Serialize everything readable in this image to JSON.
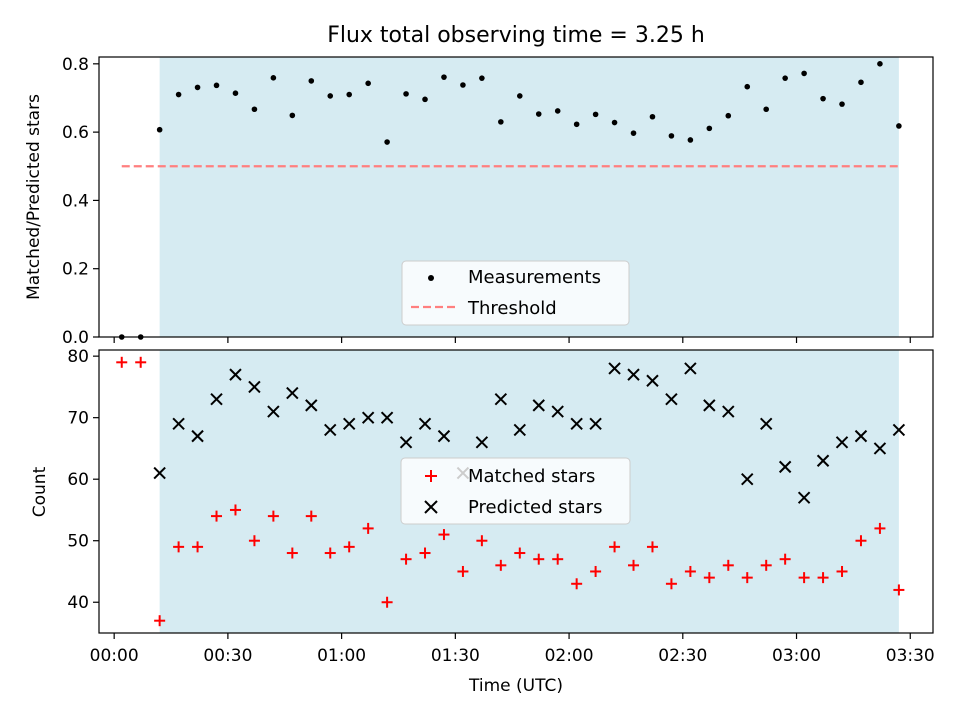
{
  "figure": {
    "title": "Flux total observing time = 3.25 h",
    "xlabel": "Time (UTC)",
    "xticks": [
      "00:00",
      "00:30",
      "01:00",
      "01:30",
      "02:00",
      "02:30",
      "03:00",
      "03:30"
    ]
  },
  "chart_data": [
    {
      "type": "scatter",
      "title": "Flux total observing time = 3.25 h",
      "xlabel": "Time (UTC)",
      "ylabel": "Matched/Predicted stars",
      "xlim": [
        -4,
        216
      ],
      "ylim": [
        0,
        0.82
      ],
      "yticks": [
        "0.0",
        "0.2",
        "0.4",
        "0.6",
        "0.8"
      ],
      "shaded_span": [
        12,
        207
      ],
      "shade_color": "#add8e6",
      "threshold": {
        "name": "Threshold",
        "y": 0.5,
        "x_range": [
          2,
          207
        ],
        "color": "#ff7f7f"
      },
      "legend": [
        "Measurements",
        "Threshold"
      ],
      "legend_position": "lower-center",
      "series": [
        {
          "name": "Measurements",
          "color": "#000000",
          "x": [
            2,
            7,
            12,
            17,
            22,
            27,
            32,
            37,
            42,
            47,
            52,
            57,
            62,
            67,
            72,
            77,
            82,
            87,
            92,
            97,
            102,
            107,
            112,
            117,
            122,
            127,
            132,
            137,
            142,
            147,
            152,
            157,
            162,
            167,
            172,
            177,
            182,
            187,
            192,
            197,
            202,
            207
          ],
          "values": [
            0.0,
            0.0,
            0.607,
            0.71,
            0.731,
            0.737,
            0.714,
            0.667,
            0.759,
            0.649,
            0.75,
            0.706,
            0.71,
            0.743,
            0.571,
            0.712,
            0.696,
            0.761,
            0.738,
            0.758,
            0.63,
            0.706,
            0.653,
            0.662,
            0.623,
            0.652,
            0.628,
            0.597,
            0.645,
            0.589,
            0.577,
            0.611,
            0.648,
            0.733,
            0.667,
            0.758,
            0.772,
            0.698,
            0.682,
            0.746,
            0.8,
            0.618
          ]
        }
      ]
    },
    {
      "type": "scatter",
      "xlabel": "Time (UTC)",
      "ylabel": "Count",
      "xlim": [
        -4,
        216
      ],
      "ylim": [
        35,
        81
      ],
      "yticks": [
        "40",
        "50",
        "60",
        "70",
        "80"
      ],
      "shaded_span": [
        12,
        207
      ],
      "shade_color": "#add8e6",
      "legend": [
        "Matched stars",
        "Predicted stars"
      ],
      "legend_position": "center",
      "series": [
        {
          "name": "Matched stars",
          "marker": "+",
          "color": "#ff0000",
          "x": [
            2,
            7,
            12,
            17,
            22,
            27,
            32,
            37,
            42,
            47,
            52,
            57,
            62,
            67,
            72,
            77,
            82,
            87,
            92,
            97,
            102,
            107,
            112,
            117,
            122,
            127,
            132,
            137,
            142,
            147,
            152,
            157,
            162,
            167,
            172,
            177,
            182,
            187,
            192,
            197,
            202,
            207
          ],
          "values": [
            79,
            79,
            37,
            49,
            49,
            54,
            55,
            50,
            54,
            48,
            54,
            48,
            49,
            52,
            40,
            47,
            48,
            51,
            45,
            50,
            46,
            48,
            47,
            47,
            43,
            45,
            49,
            46,
            49,
            43,
            45,
            44,
            46,
            44,
            46,
            47,
            44,
            44,
            45,
            50,
            52,
            42
          ]
        },
        {
          "name": "Predicted stars",
          "marker": "x",
          "color": "#000000",
          "x": [
            12,
            17,
            22,
            27,
            32,
            37,
            42,
            47,
            52,
            57,
            62,
            67,
            72,
            77,
            82,
            87,
            92,
            97,
            102,
            107,
            112,
            117,
            122,
            127,
            132,
            137,
            142,
            147,
            152,
            157,
            162,
            167,
            172,
            177,
            182,
            187,
            192,
            197,
            202,
            207
          ],
          "values": [
            61,
            69,
            67,
            73,
            77,
            75,
            71,
            74,
            72,
            68,
            69,
            70,
            70,
            66,
            69,
            67,
            61,
            66,
            73,
            68,
            72,
            71,
            69,
            69,
            78,
            77,
            76,
            73,
            78,
            72,
            71,
            60,
            69,
            62,
            57,
            63,
            66,
            67,
            65,
            68
          ]
        }
      ]
    }
  ]
}
